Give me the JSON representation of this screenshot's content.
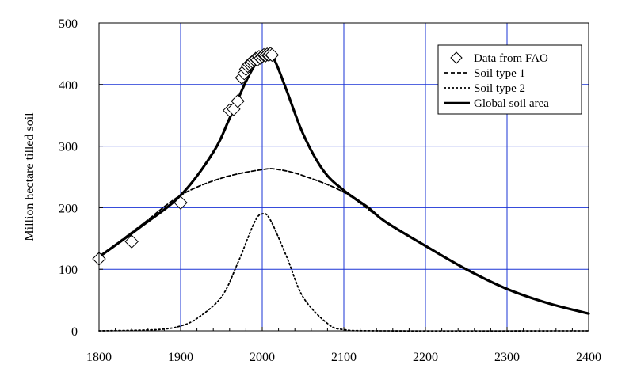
{
  "chart_data": {
    "type": "line",
    "title": "",
    "xlabel": "",
    "ylabel": "Million hectare tilled soil",
    "xlim": [
      1800,
      2400
    ],
    "ylim": [
      0,
      500
    ],
    "x_ticks": [
      1800,
      1900,
      2000,
      2100,
      2200,
      2300,
      2400
    ],
    "y_ticks": [
      0,
      100,
      200,
      300,
      400,
      500
    ],
    "grid": true,
    "grid_color": "#1a33d6",
    "legend_position": "top-right",
    "legend": [
      "Data from FAO",
      "Soil type 1",
      "Soil type 2",
      "Global soil area"
    ],
    "series": [
      {
        "name": "Data from FAO",
        "style": "diamond-markers",
        "points": [
          [
            1800,
            117
          ],
          [
            1840,
            145
          ],
          [
            1900,
            208
          ],
          [
            1960,
            358
          ],
          [
            1965,
            360
          ],
          [
            1970,
            373
          ],
          [
            1975,
            411
          ],
          [
            1978,
            418
          ],
          [
            1980,
            425
          ],
          [
            1982,
            430
          ],
          [
            1984,
            433
          ],
          [
            1986,
            435
          ],
          [
            1988,
            437
          ],
          [
            1990,
            440
          ],
          [
            1992,
            442
          ],
          [
            1994,
            440
          ],
          [
            1996,
            445
          ],
          [
            1998,
            443
          ],
          [
            2000,
            446
          ],
          [
            2002,
            448
          ],
          [
            2004,
            447
          ],
          [
            2006,
            449
          ],
          [
            2008,
            448
          ],
          [
            2010,
            450
          ],
          [
            2012,
            448
          ]
        ]
      },
      {
        "name": "Soil type 1",
        "style": "dashed",
        "x": [
          1800,
          1850,
          1900,
          1950,
          2000,
          2020,
          2050,
          2100,
          2150,
          2200,
          2250,
          2300,
          2350,
          2400
        ],
        "y": [
          120,
          170,
          220,
          248,
          262,
          262,
          252,
          225,
          178,
          138,
          100,
          68,
          45,
          28
        ]
      },
      {
        "name": "Soil type 2",
        "style": "dotted",
        "x": [
          1800,
          1850,
          1880,
          1900,
          1920,
          1950,
          1970,
          1990,
          2000,
          2010,
          2030,
          2050,
          2080,
          2100,
          2150,
          2400
        ],
        "y": [
          0,
          1,
          3,
          8,
          20,
          55,
          110,
          175,
          190,
          180,
          120,
          55,
          12,
          2,
          0,
          0
        ]
      },
      {
        "name": "Global soil area",
        "style": "solid-thick",
        "x": [
          1800,
          1850,
          1900,
          1940,
          1960,
          1980,
          1995,
          2005,
          2015,
          2030,
          2050,
          2075,
          2100,
          2130,
          2150,
          2200,
          2250,
          2300,
          2350,
          2400
        ],
        "y": [
          120,
          168,
          220,
          290,
          345,
          405,
          440,
          452,
          440,
          390,
          320,
          260,
          228,
          200,
          178,
          138,
          100,
          68,
          45,
          28
        ]
      }
    ]
  }
}
